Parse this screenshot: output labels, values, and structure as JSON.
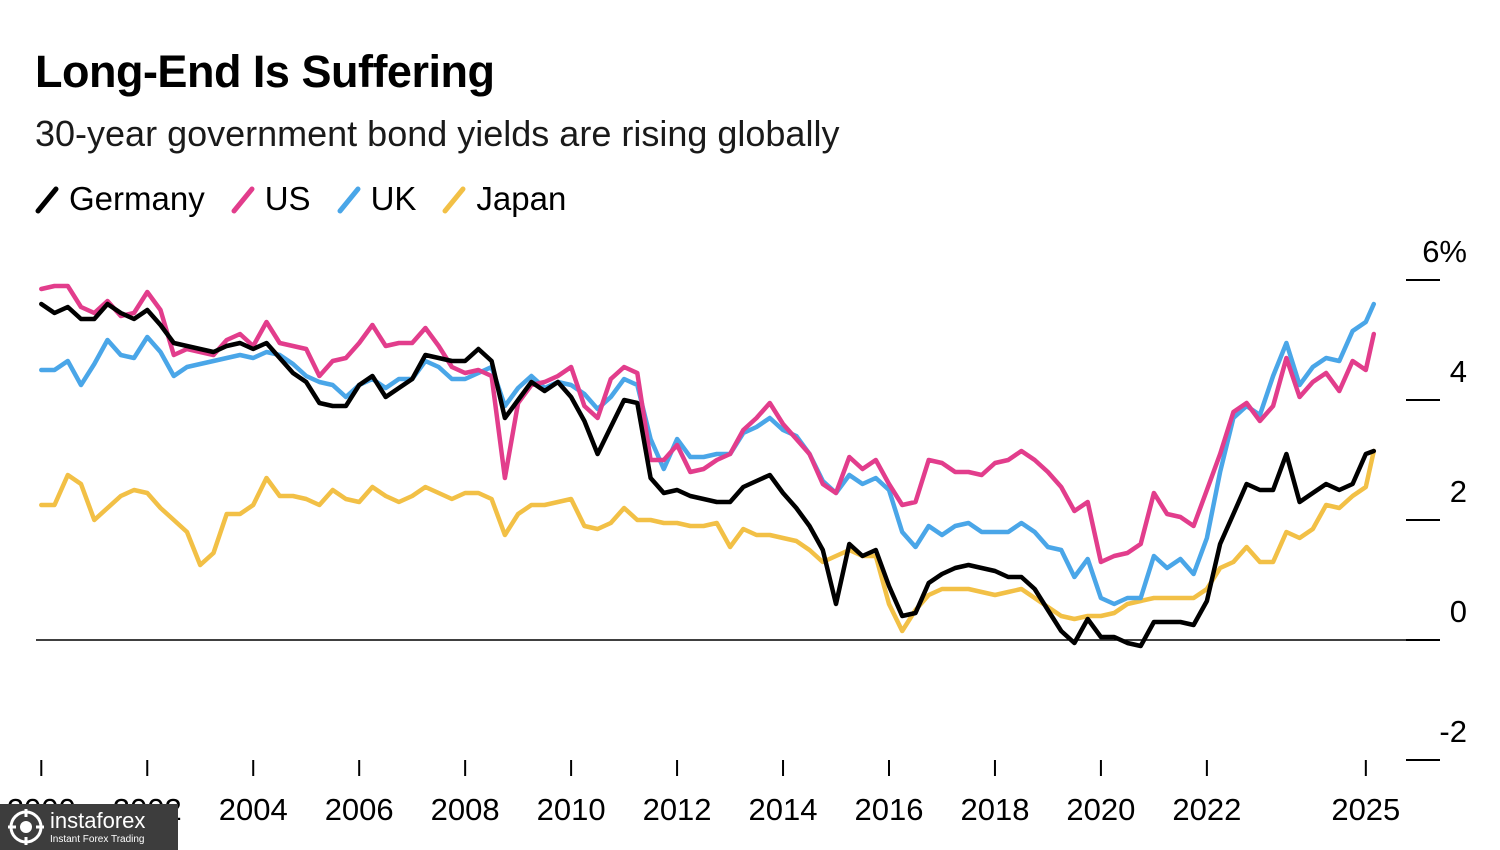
{
  "chart_data": {
    "type": "line",
    "title": "Long-End Is Suffering",
    "subtitle": "30-year government bond yields are rising globally",
    "y_axis": {
      "position": "right",
      "ylim": [
        -2,
        6
      ],
      "ticks": [
        6,
        4,
        2,
        0,
        -2
      ],
      "tick_labels": [
        "6%",
        "4",
        "2",
        "0",
        "-2"
      ]
    },
    "x_axis": {
      "xlim": [
        1999.9,
        2026.4
      ],
      "ticks": [
        2000,
        2002,
        2004,
        2006,
        2008,
        2010,
        2012,
        2014,
        2016,
        2018,
        2020,
        2022,
        2025
      ],
      "tick_labels": [
        "2000",
        "2002",
        "2004",
        "2006",
        "2008",
        "2010",
        "2012",
        "2014",
        "2016",
        "2018",
        "2020",
        "2022",
        "2025"
      ]
    },
    "legend_position": "top-left",
    "series": [
      {
        "name": "Germany",
        "color": "#000000",
        "x": [
          2000.0,
          2000.25,
          2000.5,
          2000.75,
          2001.0,
          2001.25,
          2001.5,
          2001.75,
          2002.0,
          2002.25,
          2002.5,
          2002.75,
          2003.0,
          2003.25,
          2003.5,
          2003.75,
          2004.0,
          2004.25,
          2004.5,
          2004.75,
          2005.0,
          2005.25,
          2005.5,
          2005.75,
          2006.0,
          2006.25,
          2006.5,
          2006.75,
          2007.0,
          2007.25,
          2007.5,
          2007.75,
          2008.0,
          2008.25,
          2008.5,
          2008.75,
          2009.0,
          2009.25,
          2009.5,
          2009.75,
          2010.0,
          2010.25,
          2010.5,
          2010.75,
          2011.0,
          2011.25,
          2011.5,
          2011.75,
          2012.0,
          2012.25,
          2012.5,
          2012.75,
          2013.0,
          2013.25,
          2013.5,
          2013.75,
          2014.0,
          2014.25,
          2014.5,
          2014.75,
          2015.0,
          2015.25,
          2015.5,
          2015.75,
          2016.0,
          2016.25,
          2016.5,
          2016.75,
          2017.0,
          2017.25,
          2017.5,
          2017.75,
          2018.0,
          2018.25,
          2018.5,
          2018.75,
          2019.0,
          2019.25,
          2019.5,
          2019.75,
          2020.0,
          2020.25,
          2020.5,
          2020.75,
          2021.0,
          2021.25,
          2021.5,
          2021.75,
          2022.0,
          2022.25,
          2022.5,
          2022.75,
          2023.0,
          2023.25,
          2023.5,
          2023.75,
          2024.0,
          2024.25,
          2024.5,
          2024.75,
          2025.0,
          2025.15
        ],
        "y": [
          5.6,
          5.45,
          5.55,
          5.35,
          5.35,
          5.6,
          5.45,
          5.35,
          5.5,
          5.25,
          4.95,
          4.9,
          4.85,
          4.8,
          4.9,
          4.95,
          4.85,
          4.95,
          4.7,
          4.45,
          4.3,
          3.95,
          3.9,
          3.9,
          4.25,
          4.4,
          4.05,
          4.2,
          4.35,
          4.75,
          4.7,
          4.65,
          4.65,
          4.85,
          4.65,
          3.7,
          4.0,
          4.3,
          4.15,
          4.3,
          4.05,
          3.65,
          3.1,
          3.55,
          4.0,
          3.95,
          2.7,
          2.45,
          2.5,
          2.4,
          2.35,
          2.3,
          2.3,
          2.55,
          2.65,
          2.75,
          2.45,
          2.2,
          1.9,
          1.5,
          0.6,
          1.6,
          1.4,
          1.5,
          0.9,
          0.4,
          0.45,
          0.95,
          1.1,
          1.2,
          1.25,
          1.2,
          1.15,
          1.05,
          1.05,
          0.85,
          0.5,
          0.15,
          -0.05,
          0.35,
          0.05,
          0.05,
          -0.05,
          -0.1,
          0.3,
          0.3,
          0.3,
          0.25,
          0.65,
          1.6,
          2.1,
          2.6,
          2.5,
          2.5,
          3.1,
          2.3,
          2.45,
          2.6,
          2.5,
          2.6,
          3.1,
          3.15
        ]
      },
      {
        "name": "US",
        "color": "#e23d8c",
        "x": [
          2000.0,
          2000.25,
          2000.5,
          2000.75,
          2001.0,
          2001.25,
          2001.5,
          2001.75,
          2002.0,
          2002.25,
          2002.5,
          2002.75,
          2003.0,
          2003.25,
          2003.5,
          2003.75,
          2004.0,
          2004.25,
          2004.5,
          2004.75,
          2005.0,
          2005.25,
          2005.5,
          2005.75,
          2006.0,
          2006.25,
          2006.5,
          2006.75,
          2007.0,
          2007.25,
          2007.5,
          2007.75,
          2008.0,
          2008.25,
          2008.5,
          2008.75,
          2009.0,
          2009.25,
          2009.5,
          2009.75,
          2010.0,
          2010.25,
          2010.5,
          2010.75,
          2011.0,
          2011.25,
          2011.5,
          2011.75,
          2012.0,
          2012.25,
          2012.5,
          2012.75,
          2013.0,
          2013.25,
          2013.5,
          2013.75,
          2014.0,
          2014.25,
          2014.5,
          2014.75,
          2015.0,
          2015.25,
          2015.5,
          2015.75,
          2016.0,
          2016.25,
          2016.5,
          2016.75,
          2017.0,
          2017.25,
          2017.5,
          2017.75,
          2018.0,
          2018.25,
          2018.5,
          2018.75,
          2019.0,
          2019.25,
          2019.5,
          2019.75,
          2020.0,
          2020.25,
          2020.5,
          2020.75,
          2021.0,
          2021.25,
          2021.5,
          2021.75,
          2022.0,
          2022.25,
          2022.5,
          2022.75,
          2023.0,
          2023.25,
          2023.5,
          2023.75,
          2024.0,
          2024.25,
          2024.5,
          2024.75,
          2025.0,
          2025.15
        ],
        "y": [
          5.85,
          5.9,
          5.9,
          5.55,
          5.45,
          5.65,
          5.4,
          5.45,
          5.8,
          5.5,
          4.75,
          4.85,
          4.8,
          4.75,
          5.0,
          5.1,
          4.9,
          5.3,
          4.95,
          4.9,
          4.85,
          4.4,
          4.65,
          4.7,
          4.95,
          5.25,
          4.9,
          4.95,
          4.95,
          5.2,
          4.9,
          4.55,
          4.45,
          4.5,
          4.4,
          2.7,
          3.95,
          4.25,
          4.3,
          4.4,
          4.55,
          3.9,
          3.7,
          4.35,
          4.55,
          4.45,
          3.0,
          3.0,
          3.25,
          2.8,
          2.85,
          3.0,
          3.1,
          3.5,
          3.7,
          3.95,
          3.6,
          3.35,
          3.1,
          2.6,
          2.45,
          3.05,
          2.85,
          3.0,
          2.6,
          2.25,
          2.3,
          3.0,
          2.95,
          2.8,
          2.8,
          2.75,
          2.95,
          3.0,
          3.15,
          3.0,
          2.8,
          2.55,
          2.15,
          2.3,
          1.3,
          1.4,
          1.45,
          1.6,
          2.45,
          2.1,
          2.05,
          1.9,
          2.5,
          3.1,
          3.8,
          3.95,
          3.65,
          3.9,
          4.7,
          4.05,
          4.3,
          4.45,
          4.15,
          4.65,
          4.5,
          5.1
        ]
      },
      {
        "name": "UK",
        "color": "#4aa6e8",
        "x": [
          2000.0,
          2000.25,
          2000.5,
          2000.75,
          2001.0,
          2001.25,
          2001.5,
          2001.75,
          2002.0,
          2002.25,
          2002.5,
          2002.75,
          2003.0,
          2003.25,
          2003.5,
          2003.75,
          2004.0,
          2004.25,
          2004.5,
          2004.75,
          2005.0,
          2005.25,
          2005.5,
          2005.75,
          2006.0,
          2006.25,
          2006.5,
          2006.75,
          2007.0,
          2007.25,
          2007.5,
          2007.75,
          2008.0,
          2008.25,
          2008.5,
          2008.75,
          2009.0,
          2009.25,
          2009.5,
          2009.75,
          2010.0,
          2010.25,
          2010.5,
          2010.75,
          2011.0,
          2011.25,
          2011.5,
          2011.75,
          2012.0,
          2012.25,
          2012.5,
          2012.75,
          2013.0,
          2013.25,
          2013.5,
          2013.75,
          2014.0,
          2014.25,
          2014.5,
          2014.75,
          2015.0,
          2015.25,
          2015.5,
          2015.75,
          2016.0,
          2016.25,
          2016.5,
          2016.75,
          2017.0,
          2017.25,
          2017.5,
          2017.75,
          2018.0,
          2018.25,
          2018.5,
          2018.75,
          2019.0,
          2019.25,
          2019.5,
          2019.75,
          2020.0,
          2020.25,
          2020.5,
          2020.75,
          2021.0,
          2021.25,
          2021.5,
          2021.75,
          2022.0,
          2022.25,
          2022.5,
          2022.75,
          2023.0,
          2023.25,
          2023.5,
          2023.75,
          2024.0,
          2024.25,
          2024.5,
          2024.75,
          2025.0,
          2025.15
        ],
        "y": [
          4.5,
          4.5,
          4.65,
          4.25,
          4.6,
          5.0,
          4.75,
          4.7,
          5.05,
          4.8,
          4.4,
          4.55,
          4.6,
          4.65,
          4.7,
          4.75,
          4.7,
          4.8,
          4.75,
          4.6,
          4.4,
          4.3,
          4.25,
          4.05,
          4.25,
          4.35,
          4.2,
          4.35,
          4.35,
          4.65,
          4.55,
          4.35,
          4.35,
          4.45,
          4.55,
          3.9,
          4.2,
          4.4,
          4.2,
          4.3,
          4.25,
          4.1,
          3.85,
          4.05,
          4.35,
          4.25,
          3.35,
          2.85,
          3.35,
          3.05,
          3.05,
          3.1,
          3.1,
          3.45,
          3.55,
          3.7,
          3.5,
          3.4,
          3.1,
          2.65,
          2.45,
          2.75,
          2.6,
          2.7,
          2.5,
          1.8,
          1.55,
          1.9,
          1.75,
          1.9,
          1.95,
          1.8,
          1.8,
          1.8,
          1.95,
          1.8,
          1.55,
          1.5,
          1.05,
          1.35,
          0.7,
          0.6,
          0.7,
          0.7,
          1.4,
          1.2,
          1.35,
          1.1,
          1.7,
          2.8,
          3.7,
          3.9,
          3.75,
          4.4,
          4.95,
          4.25,
          4.55,
          4.7,
          4.65,
          5.15,
          5.3,
          5.6
        ]
      },
      {
        "name": "Japan",
        "color": "#f2c046",
        "x": [
          2000.0,
          2000.25,
          2000.5,
          2000.75,
          2001.0,
          2001.25,
          2001.5,
          2001.75,
          2002.0,
          2002.25,
          2002.5,
          2002.75,
          2003.0,
          2003.25,
          2003.5,
          2003.75,
          2004.0,
          2004.25,
          2004.5,
          2004.75,
          2005.0,
          2005.25,
          2005.5,
          2005.75,
          2006.0,
          2006.25,
          2006.5,
          2006.75,
          2007.0,
          2007.25,
          2007.5,
          2007.75,
          2008.0,
          2008.25,
          2008.5,
          2008.75,
          2009.0,
          2009.25,
          2009.5,
          2009.75,
          2010.0,
          2010.25,
          2010.5,
          2010.75,
          2011.0,
          2011.25,
          2011.5,
          2011.75,
          2012.0,
          2012.25,
          2012.5,
          2012.75,
          2013.0,
          2013.25,
          2013.5,
          2013.75,
          2014.0,
          2014.25,
          2014.5,
          2014.75,
          2015.0,
          2015.25,
          2015.5,
          2015.75,
          2016.0,
          2016.25,
          2016.5,
          2016.75,
          2017.0,
          2017.25,
          2017.5,
          2017.75,
          2018.0,
          2018.25,
          2018.5,
          2018.75,
          2019.0,
          2019.25,
          2019.5,
          2019.75,
          2020.0,
          2020.25,
          2020.5,
          2020.75,
          2021.0,
          2021.25,
          2021.5,
          2021.75,
          2022.0,
          2022.25,
          2022.5,
          2022.75,
          2023.0,
          2023.25,
          2023.5,
          2023.75,
          2024.0,
          2024.25,
          2024.5,
          2024.75,
          2025.0,
          2025.15
        ],
        "y": [
          2.25,
          2.25,
          2.75,
          2.6,
          2.0,
          2.2,
          2.4,
          2.5,
          2.45,
          2.2,
          2.0,
          1.8,
          1.25,
          1.45,
          2.1,
          2.1,
          2.25,
          2.7,
          2.4,
          2.4,
          2.35,
          2.25,
          2.5,
          2.35,
          2.3,
          2.55,
          2.4,
          2.3,
          2.4,
          2.55,
          2.45,
          2.35,
          2.45,
          2.45,
          2.35,
          1.75,
          2.1,
          2.25,
          2.25,
          2.3,
          2.35,
          1.9,
          1.85,
          1.95,
          2.2,
          2.0,
          2.0,
          1.95,
          1.95,
          1.9,
          1.9,
          1.95,
          1.55,
          1.85,
          1.75,
          1.75,
          1.7,
          1.65,
          1.5,
          1.3,
          1.4,
          1.5,
          1.4,
          1.4,
          0.6,
          0.15,
          0.5,
          0.75,
          0.85,
          0.85,
          0.85,
          0.8,
          0.75,
          0.8,
          0.85,
          0.7,
          0.55,
          0.4,
          0.35,
          0.4,
          0.4,
          0.45,
          0.6,
          0.65,
          0.7,
          0.7,
          0.7,
          0.7,
          0.85,
          1.2,
          1.3,
          1.55,
          1.3,
          1.3,
          1.8,
          1.7,
          1.85,
          2.25,
          2.2,
          2.4,
          2.55,
          3.15
        ]
      }
    ]
  },
  "watermark": {
    "brand": "instaforex",
    "tagline": "Instant Forex Trading"
  }
}
